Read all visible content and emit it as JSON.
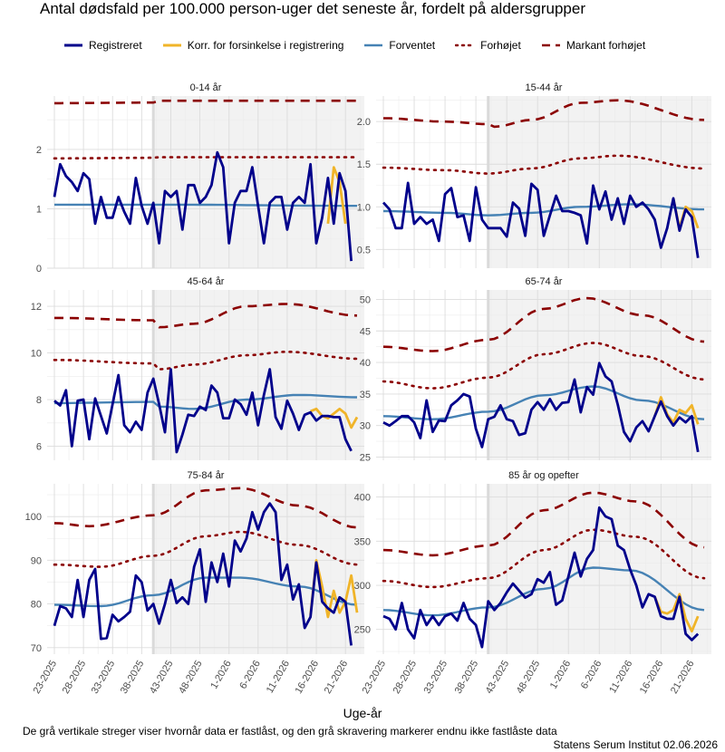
{
  "title": "Antal dødsfald per 100.000 person-uger det seneste år, fordelt på aldersgrupper",
  "xlabel": "Uge-år",
  "footnote": "De grå vertikale streger viser hvornår data er fastlåst, og den grå skravering markerer endnu ikke fastlåste data",
  "credit": "Statens Serum Institut  02.06.2026",
  "legend": [
    {
      "label": "Registreret",
      "color": "#00008B",
      "style": "solid",
      "width": 3
    },
    {
      "label": "Korr. for forsinkelse i registrering",
      "color": "#F0B429",
      "style": "solid",
      "width": 3
    },
    {
      "label": "Forventet",
      "color": "#4682B4",
      "style": "solid",
      "width": 2.5
    },
    {
      "label": "Forhøjet",
      "color": "#8B0000",
      "style": "dotted",
      "width": 2.5
    },
    {
      "label": "Markant forhøjet",
      "color": "#8B0000",
      "style": "dashed",
      "width": 2.5
    }
  ],
  "chart_data": {
    "type": "line",
    "x_ticks": [
      "23-2025",
      "28-2025",
      "33-2025",
      "38-2025",
      "43-2025",
      "48-2025",
      "1-2026",
      "6-2026",
      "11-2026",
      "16-2026",
      "21-2026"
    ],
    "n_weeks": 53,
    "lock_week_index": 17,
    "panels": [
      {
        "name": "0-14 år",
        "ylim": [
          0,
          2.9
        ],
        "yticks": [
          0,
          1,
          2
        ],
        "ytick_labels": [
          "0",
          "1",
          "2"
        ],
        "registreret": [
          1.2,
          1.75,
          1.55,
          1.45,
          1.3,
          1.6,
          1.5,
          0.75,
          1.2,
          0.85,
          0.85,
          1.2,
          0.95,
          0.75,
          1.52,
          1.05,
          0.75,
          1.1,
          0.42,
          1.3,
          1.2,
          1.3,
          0.65,
          1.4,
          1.4,
          1.1,
          1.2,
          1.4,
          1.95,
          1.7,
          0.42,
          1.1,
          1.3,
          1.3,
          1.7,
          1.05,
          0.42,
          1.1,
          1.2,
          1.2,
          0.65,
          1.1,
          1.2,
          1.1,
          1.75,
          0.42,
          0.85,
          1.52,
          0.75,
          1.6,
          1.3,
          0.12
        ],
        "korrigeret_start": 47,
        "korrigeret": [
          0.75,
          1.7,
          1.45,
          0.75
        ],
        "forventet": {
          "knots": [
            [
              0,
              1.07
            ],
            [
              20,
              1.07
            ],
            [
              52,
              1.05
            ]
          ]
        },
        "forhoejet": {
          "knots": [
            [
              0,
              1.85
            ],
            [
              17,
              1.86
            ],
            [
              18,
              1.87
            ],
            [
              52,
              1.87
            ]
          ]
        },
        "markant": {
          "knots": [
            [
              0,
              2.78
            ],
            [
              17,
              2.79
            ],
            [
              18,
              2.82
            ],
            [
              52,
              2.82
            ]
          ]
        }
      },
      {
        "name": "15-44 år",
        "ylim": [
          0.28,
          2.3
        ],
        "yticks": [
          0.5,
          1.0,
          1.5,
          2.0
        ],
        "ytick_labels": [
          "0.5",
          "1.0",
          "1.5",
          "2.0"
        ],
        "registreret": [
          1.05,
          0.97,
          0.75,
          0.75,
          1.28,
          0.8,
          0.88,
          0.8,
          0.85,
          0.6,
          1.15,
          1.22,
          0.88,
          0.9,
          0.6,
          1.23,
          0.85,
          0.75,
          0.75,
          0.75,
          0.65,
          1.05,
          0.98,
          0.66,
          1.27,
          1.2,
          0.66,
          0.9,
          1.13,
          0.95,
          0.95,
          0.93,
          0.9,
          0.57,
          1.25,
          0.97,
          1.18,
          0.85,
          1.1,
          0.8,
          1.13,
          1.0,
          1.05,
          0.97,
          0.85,
          0.52,
          0.75,
          1.1,
          0.72,
          0.97,
          0.88,
          0.4
        ],
        "korrigeret_start": 47,
        "korrigeret": [
          1.1,
          0.75,
          1.0,
          0.95,
          0.75
        ],
        "forventet": {
          "knots": [
            [
              0,
              0.95
            ],
            [
              10,
              0.93
            ],
            [
              17,
              0.9
            ],
            [
              24,
              0.93
            ],
            [
              32,
              1.0
            ],
            [
              40,
              1.03
            ],
            [
              52,
              0.97
            ]
          ]
        },
        "forhoejet": {
          "knots": [
            [
              0,
              1.46
            ],
            [
              10,
              1.43
            ],
            [
              17,
              1.39
            ],
            [
              24,
              1.45
            ],
            [
              32,
              1.57
            ],
            [
              38,
              1.6
            ],
            [
              52,
              1.45
            ]
          ]
        },
        "markant": {
          "knots": [
            [
              0,
              2.04
            ],
            [
              10,
              2.0
            ],
            [
              17,
              1.97
            ],
            [
              18,
              1.94
            ],
            [
              24,
              2.02
            ],
            [
              32,
              2.22
            ],
            [
              38,
              2.25
            ],
            [
              52,
              2.02
            ]
          ]
        }
      },
      {
        "name": "45-64 år",
        "ylim": [
          5.4,
          12.7
        ],
        "yticks": [
          6,
          8,
          10,
          12
        ],
        "ytick_labels": [
          "6",
          "8",
          "10",
          "12"
        ],
        "registreret": [
          7.95,
          7.75,
          8.4,
          6.0,
          7.95,
          8.0,
          6.3,
          8.05,
          7.3,
          6.55,
          7.8,
          9.05,
          6.9,
          6.6,
          7.05,
          6.7,
          8.3,
          8.9,
          7.8,
          6.6,
          9.3,
          5.75,
          6.5,
          7.35,
          7.3,
          7.7,
          7.55,
          8.6,
          8.3,
          7.2,
          7.2,
          8.0,
          7.8,
          7.35,
          8.3,
          6.9,
          8.2,
          9.3,
          7.25,
          6.75,
          7.95,
          7.4,
          6.7,
          7.35,
          7.45,
          7.1,
          7.3,
          7.3,
          7.25,
          7.25,
          6.3,
          5.8
        ],
        "korrigeret_start": 44,
        "korrigeret": [
          7.5,
          7.6,
          7.3,
          7.2,
          7.4,
          7.6,
          7.4,
          6.8,
          7.25
        ],
        "forventet": {
          "knots": [
            [
              0,
              7.85
            ],
            [
              17,
              7.9
            ],
            [
              18,
              7.7
            ],
            [
              24,
              7.6
            ],
            [
              33,
              8.0
            ],
            [
              42,
              8.2
            ],
            [
              52,
              8.1
            ]
          ]
        },
        "forhoejet": {
          "knots": [
            [
              0,
              9.7
            ],
            [
              17,
              9.55
            ],
            [
              18,
              9.3
            ],
            [
              24,
              9.5
            ],
            [
              33,
              9.9
            ],
            [
              40,
              10.05
            ],
            [
              52,
              9.75
            ]
          ]
        },
        "markant": {
          "knots": [
            [
              0,
              11.5
            ],
            [
              17,
              11.4
            ],
            [
              18,
              11.1
            ],
            [
              24,
              11.25
            ],
            [
              33,
              12.0
            ],
            [
              40,
              12.1
            ],
            [
              52,
              11.6
            ]
          ]
        }
      },
      {
        "name": "65-74 år",
        "ylim": [
          24.5,
          51.5
        ],
        "yticks": [
          25,
          30,
          35,
          40,
          45,
          50
        ],
        "ytick_labels": [
          "25",
          "30",
          "35",
          "40",
          "45",
          "50"
        ],
        "registreret": [
          30.5,
          30.0,
          30.7,
          31.5,
          31.5,
          30.5,
          28.0,
          34.0,
          29.0,
          30.8,
          30.7,
          33.2,
          34.0,
          35.0,
          34.6,
          29.5,
          26.6,
          31.0,
          31.4,
          33.2,
          31.0,
          30.7,
          28.5,
          28.8,
          32.5,
          33.7,
          32.5,
          34.2,
          32.5,
          33.6,
          33.7,
          37.3,
          32.1,
          36.1,
          34.9,
          39.9,
          37.8,
          37.0,
          33.3,
          29.0,
          27.5,
          29.7,
          30.7,
          29.1,
          31.5,
          33.8,
          31.5,
          30.0,
          31.3,
          30.5,
          31.5,
          25.8
        ],
        "korrigeret_start": 44,
        "korrigeret": [
          31.5,
          34.5,
          31.8,
          30.5,
          32.5,
          32.0,
          33.2,
          30.2
        ],
        "forventet": {
          "knots": [
            [
              0,
              31.5
            ],
            [
              8,
              31.0
            ],
            [
              17,
              32.2
            ],
            [
              26,
              34.8
            ],
            [
              34,
              36.2
            ],
            [
              42,
              34.0
            ],
            [
              52,
              31.0
            ]
          ]
        },
        "forhoejet": {
          "knots": [
            [
              0,
              37.0
            ],
            [
              8,
              35.9
            ],
            [
              17,
              37.6
            ],
            [
              26,
              41.3
            ],
            [
              34,
              43.1
            ],
            [
              42,
              41.0
            ],
            [
              52,
              37.3
            ]
          ]
        },
        "markant": {
          "knots": [
            [
              0,
              42.5
            ],
            [
              8,
              41.8
            ],
            [
              17,
              43.6
            ],
            [
              26,
              48.5
            ],
            [
              33,
              50.2
            ],
            [
              42,
              47.5
            ],
            [
              52,
              43.3
            ]
          ]
        }
      },
      {
        "name": "75-84 år",
        "ylim": [
          68.5,
          107.5
        ],
        "yticks": [
          70,
          80,
          90,
          100
        ],
        "ytick_labels": [
          "70",
          "80",
          "90",
          "100"
        ],
        "registreret": [
          75.0,
          79.5,
          79.0,
          77.0,
          85.5,
          77.0,
          85.5,
          88.0,
          72.0,
          72.2,
          77.5,
          76.0,
          77.0,
          78.2,
          86.5,
          85.0,
          78.5,
          80.0,
          75.5,
          80.0,
          85.5,
          80.2,
          81.5,
          80.0,
          88.5,
          92.5,
          80.5,
          89.5,
          85.0,
          91.5,
          84.0,
          94.5,
          92.0,
          95.0,
          101.0,
          97.0,
          101.0,
          103.0,
          101.0,
          85.5,
          89.0,
          81.0,
          84.5,
          74.5,
          77.0,
          89.5,
          80.5,
          79.0,
          78.0,
          81.5,
          80.5,
          70.5
        ],
        "korrigeret_start": 44,
        "korrigeret": [
          77.5,
          90.0,
          84.0,
          77.0,
          83.0,
          78.0,
          80.5,
          86.5,
          78.0
        ],
        "forventet": {
          "knots": [
            [
              0,
              79.8
            ],
            [
              8,
              79.5
            ],
            [
              17,
              82.0
            ],
            [
              26,
              86.0
            ],
            [
              32,
              86.0
            ],
            [
              42,
              84.0
            ],
            [
              52,
              79.8
            ]
          ]
        },
        "forhoejet": {
          "knots": [
            [
              0,
              89.0
            ],
            [
              8,
              88.5
            ],
            [
              17,
              91.0
            ],
            [
              26,
              95.5
            ],
            [
              32,
              96.5
            ],
            [
              42,
              93.5
            ],
            [
              52,
              89.0
            ]
          ]
        },
        "markant": {
          "knots": [
            [
              0,
              98.5
            ],
            [
              6,
              97.8
            ],
            [
              17,
              100.3
            ],
            [
              26,
              106.0
            ],
            [
              32,
              106.5
            ],
            [
              42,
              102.5
            ],
            [
              52,
              97.5
            ]
          ]
        }
      },
      {
        "name": "85 år og opefter",
        "ylim": [
          222,
          415
        ],
        "yticks": [
          250,
          300,
          350,
          400
        ],
        "ytick_labels": [
          "250",
          "300",
          "350",
          "400"
        ],
        "registreret": [
          265,
          262,
          250,
          280,
          250,
          240,
          272,
          255,
          265,
          255,
          265,
          268,
          260,
          280,
          262,
          255,
          230,
          282,
          272,
          280,
          292,
          302,
          294,
          286,
          290,
          307,
          303,
          315,
          278,
          283,
          310,
          337,
          310,
          330,
          340,
          388,
          378,
          375,
          345,
          340,
          318,
          300,
          275,
          290,
          287,
          265,
          262,
          262,
          287,
          245,
          238,
          245
        ],
        "korrigeret_start": 44,
        "korrigeret": [
          287,
          270,
          268,
          272,
          290,
          262,
          248,
          265
        ],
        "forventet": {
          "knots": [
            [
              0,
              272
            ],
            [
              8,
              266
            ],
            [
              17,
              275
            ],
            [
              26,
              296
            ],
            [
              34,
              320
            ],
            [
              40,
              317
            ],
            [
              52,
              272
            ]
          ]
        },
        "forhoejet": {
          "knots": [
            [
              0,
              305
            ],
            [
              8,
              298
            ],
            [
              17,
              308
            ],
            [
              26,
              340
            ],
            [
              34,
              363
            ],
            [
              41,
              355
            ],
            [
              52,
              308
            ]
          ]
        },
        "markant": {
          "knots": [
            [
              0,
              340
            ],
            [
              8,
              334
            ],
            [
              17,
              345
            ],
            [
              26,
              385
            ],
            [
              34,
              405
            ],
            [
              41,
              395
            ],
            [
              52,
              343
            ]
          ]
        }
      }
    ]
  }
}
